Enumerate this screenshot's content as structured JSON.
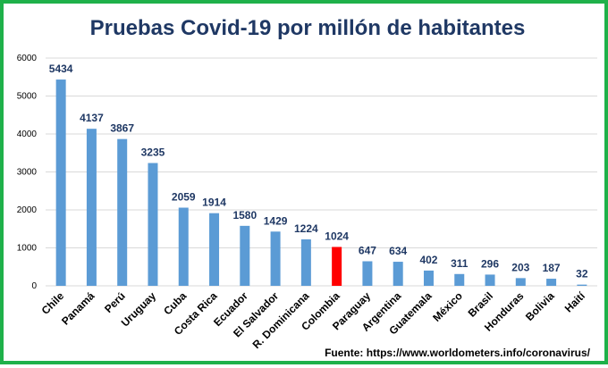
{
  "chart_data": {
    "type": "bar",
    "title": "Pruebas Covid-19 por millón de habitantes",
    "categories": [
      "Chile",
      "Panamá",
      "Perú",
      "Uruguay",
      "Cuba",
      "Costa Rica",
      "Ecuador",
      "El Salvador",
      "R. Dominicana",
      "Colombia",
      "Paraguay",
      "Argentina",
      "Guatemala",
      "México",
      "Brasil",
      "Honduras",
      "Bolivia",
      "Haití"
    ],
    "values": [
      5434,
      4137,
      3867,
      3235,
      2059,
      1914,
      1580,
      1429,
      1224,
      1024,
      647,
      634,
      402,
      311,
      296,
      203,
      187,
      32
    ],
    "yticks": [
      0,
      1000,
      2000,
      3000,
      4000,
      5000,
      6000
    ],
    "ylim": [
      0,
      6000
    ],
    "grid": true,
    "highlight_category": "Colombia",
    "colors": {
      "bar": "#5b9bd5",
      "highlight": "#ff0000",
      "label": "#1f3864",
      "grid": "#d9d9d9",
      "frame": "#1fb14a"
    }
  },
  "source": "Fuente: https://www.worldometers.info/coronavirus/"
}
